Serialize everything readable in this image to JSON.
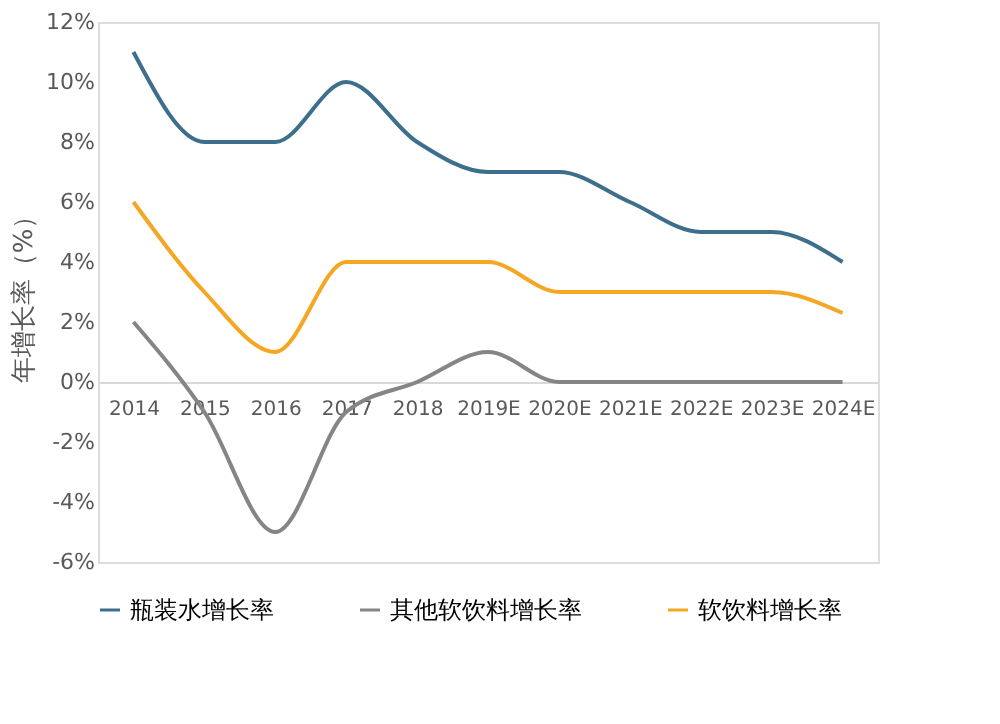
{
  "chart_data": {
    "type": "line",
    "ylabel": "年增长率（%）",
    "categories": [
      "2014",
      "2015",
      "2016",
      "2017",
      "2018",
      "2019E",
      "2020E",
      "2021E",
      "2022E",
      "2023E",
      "2024E"
    ],
    "series": [
      {
        "name": "瓶装水增长率",
        "color": "#3d6e8c",
        "values": [
          11,
          8,
          8,
          10,
          8,
          7,
          7,
          6,
          5,
          5,
          4
        ]
      },
      {
        "name": "其他软饮料增长率",
        "color": "#858585",
        "values": [
          2,
          -1,
          -5,
          -1,
          0,
          1,
          0,
          0,
          0,
          0,
          0
        ]
      },
      {
        "name": "软饮料增长率",
        "color": "#f5a623",
        "values": [
          6,
          3,
          1,
          4,
          4,
          4,
          3,
          3,
          3,
          3,
          2.3
        ]
      }
    ],
    "ylim": [
      -6,
      12
    ],
    "yticks": [
      {
        "value": -6,
        "label": "-6%"
      },
      {
        "value": -4,
        "label": "-4%"
      },
      {
        "value": -2,
        "label": "-2%"
      },
      {
        "value": 0,
        "label": "0%"
      },
      {
        "value": 2,
        "label": "2%"
      },
      {
        "value": 4,
        "label": "4%"
      },
      {
        "value": 6,
        "label": "6%"
      },
      {
        "value": 8,
        "label": "8%"
      },
      {
        "value": 10,
        "label": "10%"
      },
      {
        "value": 12,
        "label": "12%"
      }
    ],
    "grid": false,
    "legend": "bottom",
    "marker": "none",
    "line_style": "solid"
  }
}
